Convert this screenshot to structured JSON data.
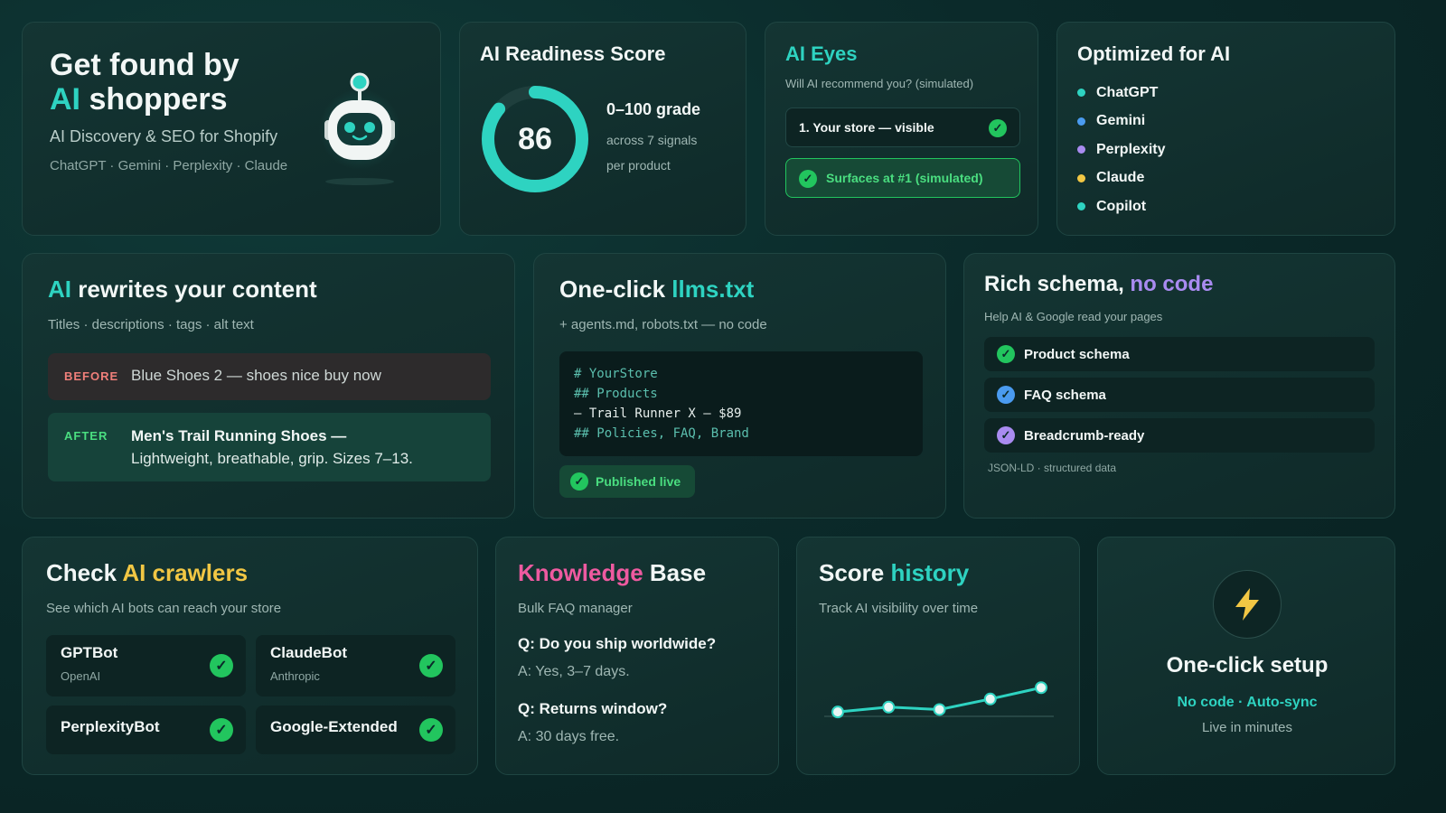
{
  "hero": {
    "title_line1": "Get found by",
    "title_ai": "AI",
    "title_line2": "shoppers",
    "subtitle": "AI Discovery & SEO for Shopify",
    "platforms": "ChatGPT · Gemini · Perplexity · Claude",
    "icon": "robot-icon"
  },
  "readiness": {
    "title": "AI Readiness Score",
    "score": "86",
    "score_value": 86,
    "grade": "0–100 grade",
    "signals": "across 7 signals",
    "per": "per product",
    "ring_color": "#2ed3c1"
  },
  "eyes": {
    "title": "AI Eyes",
    "subtitle": "Will AI recommend you? (simulated)",
    "result": "1. Your store — visible",
    "badge": "Surfaces at #1 (simulated)"
  },
  "optimized": {
    "title": "Optimized for AI",
    "items": [
      {
        "label": "ChatGPT",
        "color": "#2ed3c1"
      },
      {
        "label": "Gemini",
        "color": "#4a9bf0"
      },
      {
        "label": "Perplexity",
        "color": "#a98bf0"
      },
      {
        "label": "Claude",
        "color": "#f2c744"
      },
      {
        "label": "Copilot",
        "color": "#2ed3c1"
      }
    ]
  },
  "rewrite": {
    "title_ai": "AI",
    "title_rest": "rewrites your content",
    "subtitle": "Titles · descriptions · tags · alt text",
    "before_label": "BEFORE",
    "before_text": "Blue Shoes 2 — shoes nice buy now",
    "after_label": "AFTER",
    "after_line1": "Men's Trail Running Shoes —",
    "after_line2": "Lightweight, breathable, grip. Sizes 7–13."
  },
  "llms": {
    "title_prefix": "One-click",
    "title_file": "llms.txt",
    "subtitle": "+ agents.md, robots.txt — no code",
    "code": [
      "# YourStore",
      "## Products",
      "– Trail Runner X – $89",
      "## Policies, FAQ, Brand"
    ],
    "badge": "Published live"
  },
  "schema": {
    "title_prefix": "Rich schema,",
    "title_accent": "no code",
    "subtitle": "Help AI & Google read your pages",
    "items": [
      "Product schema",
      "FAQ schema",
      "Breadcrumb-ready"
    ],
    "footer": "JSON-LD · structured data"
  },
  "crawlers": {
    "title_prefix": "Check",
    "title_accent": "AI crawlers",
    "subtitle": "See which AI bots can reach your store",
    "bots": [
      {
        "name": "GPTBot",
        "owner": "OpenAI"
      },
      {
        "name": "ClaudeBot",
        "owner": "Anthropic"
      },
      {
        "name": "PerplexityBot",
        "owner": ""
      },
      {
        "name": "Google-Extended",
        "owner": ""
      }
    ]
  },
  "kb": {
    "title_accent": "Knowledge",
    "title_rest": "Base",
    "subtitle": "Bulk FAQ manager",
    "faqs": [
      {
        "q": "Q: Do you ship worldwide?",
        "a": "A: Yes, 3–7 days."
      },
      {
        "q": "Q: Returns window?",
        "a": "A: 30 days free."
      }
    ]
  },
  "history": {
    "title_prefix": "Score",
    "title_accent": "history",
    "subtitle": "Track AI visibility over time",
    "chart_data": {
      "type": "line",
      "x": [
        1,
        2,
        3,
        4,
        5
      ],
      "values": [
        50,
        56,
        53,
        66,
        80
      ],
      "ylim": [
        0,
        100
      ],
      "color": "#2ed3c1"
    }
  },
  "setup": {
    "icon": "lightning-icon",
    "title": "One-click setup",
    "tagline": "No code · Auto-sync",
    "sub": "Live in minutes"
  }
}
